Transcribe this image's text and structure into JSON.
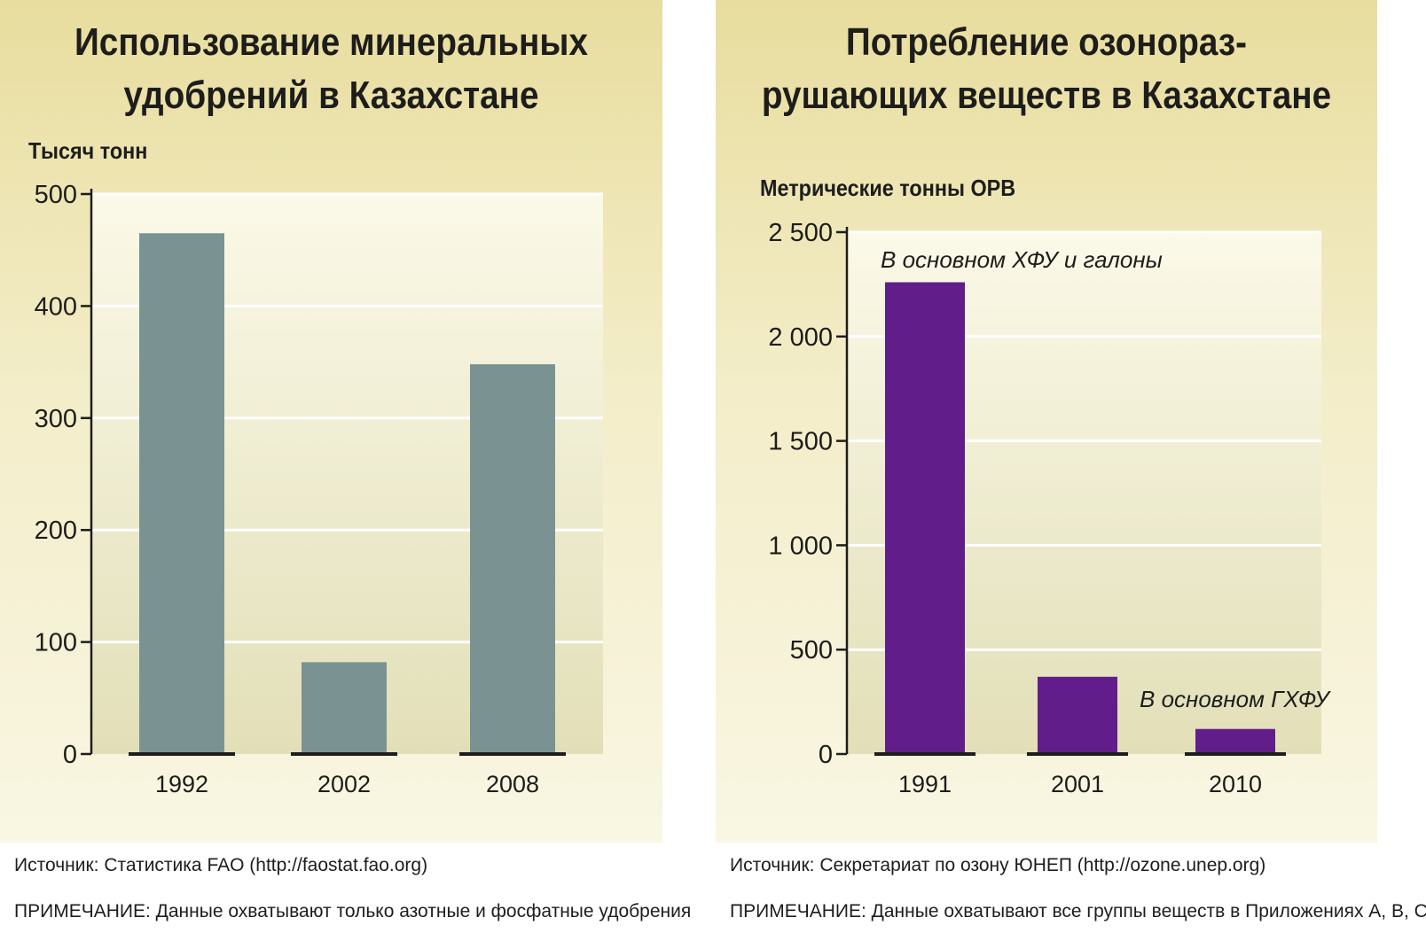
{
  "chart_data": [
    {
      "type": "bar",
      "title_lines": [
        "Использование минеральных",
        "удобрений в Казахстане"
      ],
      "ylabel": "Тысяч тонн",
      "categories": [
        "1992",
        "2002",
        "2008"
      ],
      "values": [
        465,
        82,
        348
      ],
      "ylim": [
        0,
        500
      ],
      "yticks": [
        0,
        100,
        200,
        300,
        400,
        500
      ],
      "ytick_labels": [
        "0",
        "100",
        "200",
        "300",
        "400",
        "500"
      ],
      "grid": true,
      "bar_color": "#7a9392",
      "annotations": [],
      "source": "Источник: Статистика FAO (http://faostat.fao.org)",
      "note": "ПРИМЕЧАНИЕ: Данные охватывают только азотные и фосфатные удобрения"
    },
    {
      "type": "bar",
      "title_lines": [
        "Потребление озонораз-",
        "рушающих веществ в Казахстане"
      ],
      "ylabel": "Метрические тонны ОРВ",
      "categories": [
        "1991",
        "2001",
        "2010"
      ],
      "values": [
        2260,
        370,
        120
      ],
      "ylim": [
        0,
        2500
      ],
      "yticks": [
        0,
        500,
        1000,
        1500,
        2000,
        2500
      ],
      "ytick_labels": [
        "0",
        "500",
        "1 000",
        "1 500",
        "2 000",
        "2 500"
      ],
      "grid": true,
      "bar_color": "#611e8a",
      "annotations": [
        {
          "text": "В основном ХФУ и галоны",
          "category": "1991"
        },
        {
          "text": "В основном ГХФУ",
          "category": "2010"
        }
      ],
      "source": "Источник: Секретариат по озону ЮНЕП (http://ozone.unep.org)",
      "note": "ПРИМЕЧАНИЕ: Данные охватывают все группы веществ в Приложениях А, В, С и Е."
    }
  ]
}
